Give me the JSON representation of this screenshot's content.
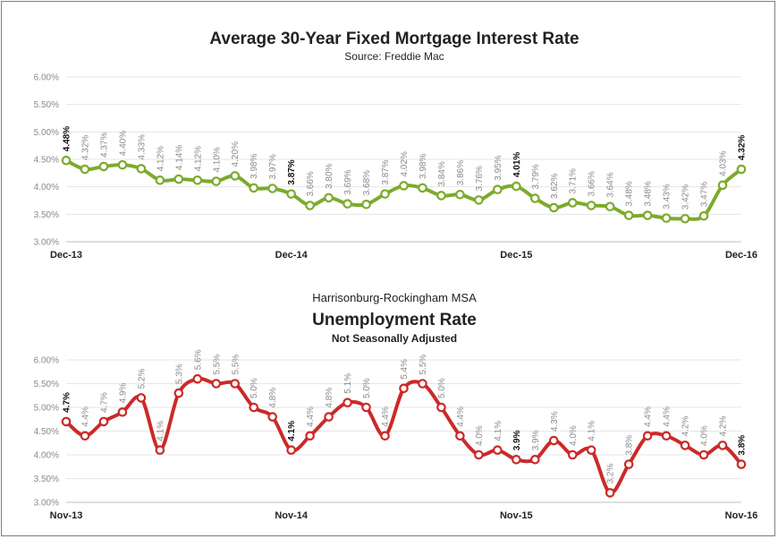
{
  "chart_data": [
    {
      "type": "line",
      "title": "Average 30-Year Fixed Mortgage Interest Rate",
      "subtitle": "Source: Freddie Mac",
      "color": "#7cab2c",
      "ylim": [
        3.0,
        6.0
      ],
      "yticks": [
        "3.00%",
        "3.50%",
        "4.00%",
        "4.50%",
        "5.00%",
        "5.50%",
        "6.00%"
      ],
      "xticks": [
        {
          "index": 0,
          "label": "Dec-13"
        },
        {
          "index": 12,
          "label": "Dec-14"
        },
        {
          "index": 24,
          "label": "Dec-15"
        },
        {
          "index": 36,
          "label": "Dec-16"
        }
      ],
      "values": [
        4.48,
        4.32,
        4.37,
        4.4,
        4.33,
        4.12,
        4.14,
        4.12,
        4.1,
        4.2,
        3.98,
        3.97,
        3.87,
        3.66,
        3.8,
        3.69,
        3.68,
        3.87,
        4.02,
        3.98,
        3.84,
        3.86,
        3.76,
        3.95,
        4.01,
        3.79,
        3.62,
        3.71,
        3.66,
        3.64,
        3.48,
        3.48,
        3.43,
        3.42,
        3.47,
        4.03,
        4.32
      ],
      "labels": [
        "4.48%",
        "4.32%",
        "4.37%",
        "4.40%",
        "4.33%",
        "4.12%",
        "4.14%",
        "4.12%",
        "4.10%",
        "4.20%",
        "3.98%",
        "3.97%",
        "3.87%",
        "3.66%",
        "3.80%",
        "3.69%",
        "3.68%",
        "3.87%",
        "4.02%",
        "3.98%",
        "3.84%",
        "3.86%",
        "3.76%",
        "3.95%",
        "4.01%",
        "3.79%",
        "3.62%",
        "3.71%",
        "3.66%",
        "3.64%",
        "3.48%",
        "3.48%",
        "3.43%",
        "3.42%",
        "3.47%",
        "4.03%",
        "4.32%"
      ],
      "bold_indices": [
        0,
        12,
        24,
        36
      ],
      "grid": true,
      "legend": "none"
    },
    {
      "type": "line",
      "pretitle": "Harrisonburg-Rockingham MSA",
      "title": "Unemployment Rate",
      "subtitle": "Not Seasonally Adjusted",
      "color": "#cc2929",
      "ylim": [
        3.0,
        6.0
      ],
      "yticks": [
        "3.00%",
        "3.50%",
        "4.00%",
        "4.50%",
        "5.00%",
        "5.50%",
        "6.00%"
      ],
      "xticks": [
        {
          "index": 0,
          "label": "Nov-13"
        },
        {
          "index": 12,
          "label": "Nov-14"
        },
        {
          "index": 24,
          "label": "Nov-15"
        },
        {
          "index": 36,
          "label": "Nov-16"
        }
      ],
      "values": [
        4.7,
        4.4,
        4.7,
        4.9,
        5.2,
        4.1,
        5.3,
        5.6,
        5.5,
        5.5,
        5.0,
        4.8,
        4.1,
        4.4,
        4.8,
        5.1,
        5.0,
        4.4,
        5.4,
        5.5,
        5.0,
        4.4,
        4.0,
        4.1,
        3.9,
        3.9,
        4.3,
        4.0,
        4.1,
        3.2,
        3.8,
        4.4,
        4.4,
        4.2,
        4.0,
        4.2,
        3.8
      ],
      "labels": [
        "4.7%",
        "4.4%",
        "4.7%",
        "4.9%",
        "5.2%",
        "4.1%",
        "5.3%",
        "5.6%",
        "5.5%",
        "5.5%",
        "5.0%",
        "4.8%",
        "4.1%",
        "4.4%",
        "4.8%",
        "5.1%",
        "5.0%",
        "4.4%",
        "5.4%",
        "5.5%",
        "5.0%",
        "4.4%",
        "4.0%",
        "4.1%",
        "3.9%",
        "3.9%",
        "4.3%",
        "4.0%",
        "4.1%",
        "3.2%",
        "3.8%",
        "4.4%",
        "4.4%",
        "4.2%",
        "4.0%",
        "4.2%",
        "3.8%"
      ],
      "bold_indices": [
        0,
        12,
        24,
        36
      ],
      "grid": true,
      "legend": "none"
    }
  ]
}
